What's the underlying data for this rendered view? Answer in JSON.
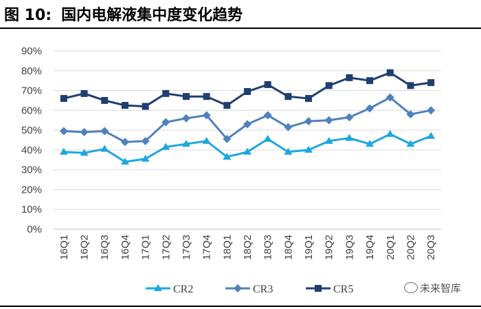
{
  "figure": {
    "label": "图 10:",
    "title": "国内电解液集中度变化趋势"
  },
  "watermark": "未来智库",
  "chart_data": {
    "type": "line",
    "categories": [
      "16Q1",
      "16Q2",
      "16Q3",
      "16Q4",
      "17Q1",
      "17Q2",
      "17Q3",
      "17Q4",
      "18Q1",
      "18Q2",
      "18Q3",
      "18Q4",
      "19Q1",
      "19Q2",
      "19Q3",
      "19Q4",
      "20Q1",
      "20Q2",
      "20Q3"
    ],
    "y_ticks": [
      "0%",
      "10%",
      "20%",
      "30%",
      "40%",
      "50%",
      "60%",
      "70%",
      "80%",
      "90%"
    ],
    "ylim": [
      0,
      90
    ],
    "grid": true,
    "legend": "bottom",
    "series": [
      {
        "name": "CR2",
        "color": "#1BA8E0",
        "marker": "triangle",
        "values": [
          39,
          38.5,
          40.5,
          34,
          35.5,
          41.5,
          43,
          44.5,
          36.5,
          39,
          45.5,
          39,
          40,
          44.5,
          46,
          43,
          48,
          43,
          47
        ]
      },
      {
        "name": "CR3",
        "color": "#4F81BD",
        "marker": "diamond",
        "values": [
          49.5,
          49,
          49.5,
          44,
          44.5,
          54,
          56,
          57.5,
          45.5,
          53,
          57.5,
          51.5,
          54.5,
          55,
          56.5,
          61,
          66.5,
          58,
          60
        ]
      },
      {
        "name": "CR5",
        "color": "#1F3F6E",
        "marker": "square",
        "values": [
          66,
          68.5,
          65,
          62.5,
          62,
          68.5,
          67,
          67,
          62.5,
          69.5,
          73,
          67,
          66,
          72.5,
          76.5,
          75,
          79,
          72.5,
          74
        ]
      }
    ]
  }
}
